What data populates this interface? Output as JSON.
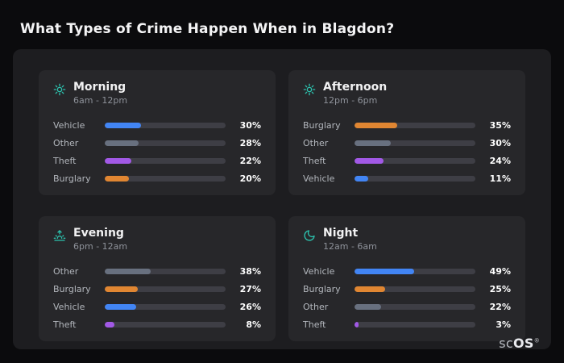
{
  "page": {
    "title": "What Types of Crime Happen When in Blagdon?"
  },
  "brand": {
    "sc": "sc",
    "os": "OS",
    "reg": "®"
  },
  "colors": {
    "accent_teal": "#2cc1ad",
    "bar_blue": "#4285f4",
    "bar_gray": "#68707f",
    "bar_purple": "#a259e6",
    "bar_orange": "#e08632",
    "track": "#3e3e45",
    "panel_bg": "#1d1d20",
    "card_bg": "#27272a",
    "page_bg": "#0b0b0d"
  },
  "cards": [
    {
      "title": "Morning",
      "subtitle": "6am - 12pm",
      "icon": "sun-icon",
      "rows": [
        {
          "label": "Vehicle",
          "value": 30,
          "pct": "30%",
          "color": "#4285f4"
        },
        {
          "label": "Other",
          "value": 28,
          "pct": "28%",
          "color": "#68707f"
        },
        {
          "label": "Theft",
          "value": 22,
          "pct": "22%",
          "color": "#a259e6"
        },
        {
          "label": "Burglary",
          "value": 20,
          "pct": "20%",
          "color": "#e08632"
        }
      ]
    },
    {
      "title": "Afternoon",
      "subtitle": "12pm - 6pm",
      "icon": "sun-icon",
      "rows": [
        {
          "label": "Burglary",
          "value": 35,
          "pct": "35%",
          "color": "#e08632"
        },
        {
          "label": "Other",
          "value": 30,
          "pct": "30%",
          "color": "#68707f"
        },
        {
          "label": "Theft",
          "value": 24,
          "pct": "24%",
          "color": "#a259e6"
        },
        {
          "label": "Vehicle",
          "value": 11,
          "pct": "11%",
          "color": "#4285f4"
        }
      ]
    },
    {
      "title": "Evening",
      "subtitle": "6pm - 12am",
      "icon": "sunset-icon",
      "rows": [
        {
          "label": "Other",
          "value": 38,
          "pct": "38%",
          "color": "#68707f"
        },
        {
          "label": "Burglary",
          "value": 27,
          "pct": "27%",
          "color": "#e08632"
        },
        {
          "label": "Vehicle",
          "value": 26,
          "pct": "26%",
          "color": "#4285f4"
        },
        {
          "label": "Theft",
          "value": 8,
          "pct": "8%",
          "color": "#a259e6"
        }
      ]
    },
    {
      "title": "Night",
      "subtitle": "12am - 6am",
      "icon": "moon-icon",
      "rows": [
        {
          "label": "Vehicle",
          "value": 49,
          "pct": "49%",
          "color": "#4285f4"
        },
        {
          "label": "Burglary",
          "value": 25,
          "pct": "25%",
          "color": "#e08632"
        },
        {
          "label": "Other",
          "value": 22,
          "pct": "22%",
          "color": "#68707f"
        },
        {
          "label": "Theft",
          "value": 3,
          "pct": "3%",
          "color": "#a259e6"
        }
      ]
    }
  ],
  "chart_data": [
    {
      "type": "bar",
      "title": "Morning",
      "subtitle": "6am - 12pm",
      "categories": [
        "Vehicle",
        "Other",
        "Theft",
        "Burglary"
      ],
      "values": [
        30,
        28,
        22,
        20
      ],
      "unit": "%",
      "xlim": [
        0,
        100
      ],
      "orientation": "horizontal"
    },
    {
      "type": "bar",
      "title": "Afternoon",
      "subtitle": "12pm - 6pm",
      "categories": [
        "Burglary",
        "Other",
        "Theft",
        "Vehicle"
      ],
      "values": [
        35,
        30,
        24,
        11
      ],
      "unit": "%",
      "xlim": [
        0,
        100
      ],
      "orientation": "horizontal"
    },
    {
      "type": "bar",
      "title": "Evening",
      "subtitle": "6pm - 12am",
      "categories": [
        "Other",
        "Burglary",
        "Vehicle",
        "Theft"
      ],
      "values": [
        38,
        27,
        26,
        8
      ],
      "unit": "%",
      "xlim": [
        0,
        100
      ],
      "orientation": "horizontal"
    },
    {
      "type": "bar",
      "title": "Night",
      "subtitle": "12am - 6am",
      "categories": [
        "Vehicle",
        "Burglary",
        "Other",
        "Theft"
      ],
      "values": [
        49,
        25,
        22,
        3
      ],
      "unit": "%",
      "xlim": [
        0,
        100
      ],
      "orientation": "horizontal"
    }
  ]
}
